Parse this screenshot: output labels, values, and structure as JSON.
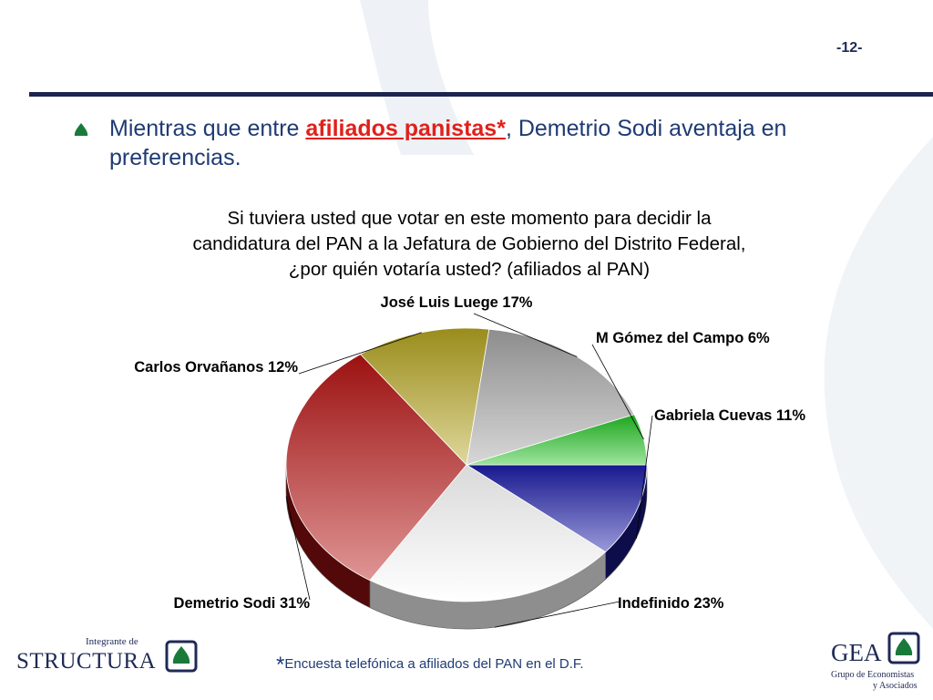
{
  "slide": {
    "page_number": "-12-",
    "bullet": {
      "before": "Mientras que entre ",
      "highlight": "afiliados panistas*",
      "after": ", Demetrio Sodi aventaja en preferencias."
    },
    "footnote_star": "*",
    "footnote": "Encuesta  telefónica a afiliados del PAN en el D.F.",
    "colors": {
      "accent": "#1c2450",
      "text": "#1f3b73",
      "highlight": "#e0211c"
    }
  },
  "logos": {
    "structura_prefix": "Integrante de",
    "structura_name": "STRUCTURA",
    "gea_name": "GEA",
    "gea_sub1": "Grupo de Economistas",
    "gea_sub2": "y Asociados"
  },
  "chart_data": {
    "type": "pie",
    "title_lines": [
      "Si tuviera usted que votar en este momento para decidir la",
      "candidatura del PAN a la Jefatura de Gobierno del Distrito Federal,",
      "¿por quién votaría usted? (afiliados al PAN)"
    ],
    "slices": [
      {
        "label": "Gabriela Cuevas  11%",
        "value": 11,
        "color": "#1c1ca8"
      },
      {
        "label": "Indefinido  23%",
        "value": 23,
        "color": "#ffffff"
      },
      {
        "label": "Demetrio Sodi  31%",
        "value": 31,
        "color": "#b81414"
      },
      {
        "label": "Carlos Orvañanos  12%",
        "value": 12,
        "color": "#b5a520"
      },
      {
        "label": "José Luis Luege  17%",
        "value": 17,
        "color": "#a6a6a6"
      },
      {
        "label": "M Gómez del Campo  6%",
        "value": 6,
        "color": "#22c222"
      }
    ]
  }
}
